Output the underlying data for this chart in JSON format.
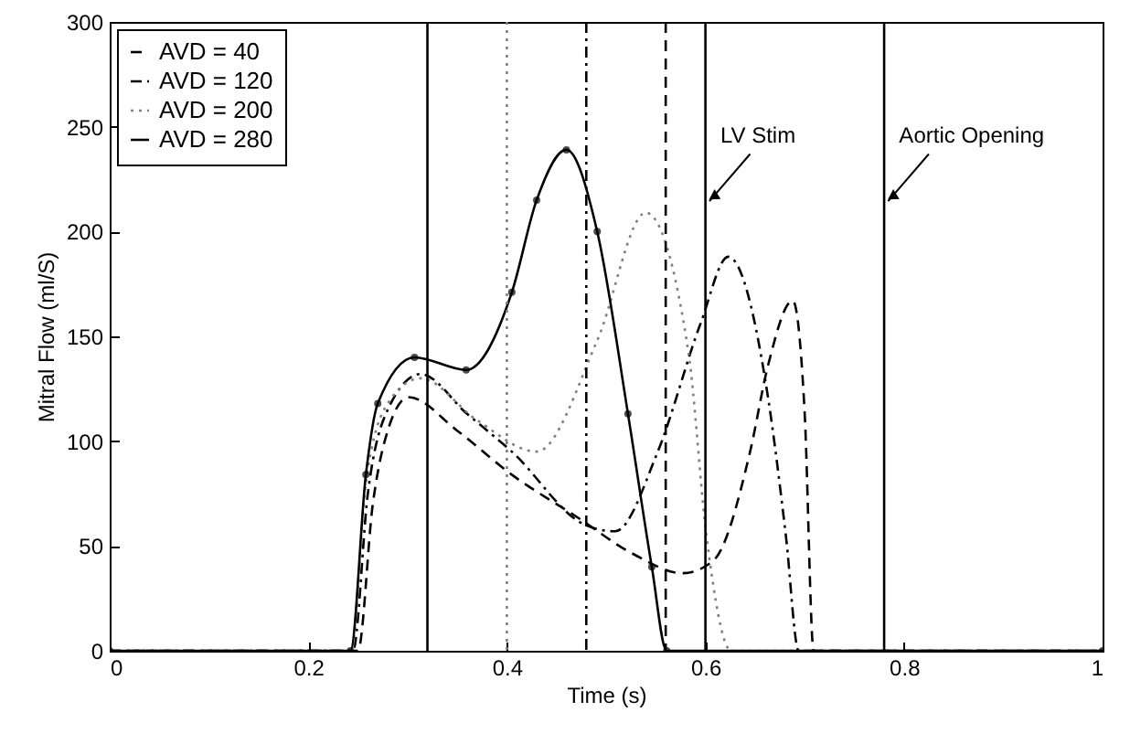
{
  "chart_data": {
    "type": "line",
    "xlabel": "Time (s)",
    "ylabel": "Mitral Flow (ml/S)",
    "xlim": [
      0,
      1
    ],
    "xticks": [
      0,
      0.2,
      0.4,
      0.6,
      0.8,
      1
    ],
    "ylim": [
      0,
      300
    ],
    "yticks": [
      0,
      50,
      100,
      150,
      200,
      250,
      300
    ],
    "legend": "top left",
    "series": [
      {
        "name": "AVD = 40",
        "color": "#000000",
        "line_style": "dashed",
        "x": [
          0,
          0.25,
          0.265,
          0.28,
          0.301,
          0.35,
          0.405,
          0.47,
          0.528,
          0.577,
          0.608,
          0.645,
          0.663,
          0.688,
          0.7,
          0.709,
          1
        ],
        "values": [
          0,
          0,
          70,
          105,
          121,
          105,
          84,
          64,
          46,
          37,
          43,
          95,
          136,
          167,
          113,
          0,
          0
        ]
      },
      {
        "name": "AVD = 120",
        "color": "#000000",
        "line_style": "dashdot",
        "x": [
          0,
          0.245,
          0.26,
          0.28,
          0.313,
          0.36,
          0.405,
          0.479,
          0.509,
          0.552,
          0.595,
          0.623,
          0.663,
          0.681,
          0.694,
          1
        ],
        "values": [
          0,
          0,
          75,
          115,
          132,
          113,
          95,
          60,
          57,
          95,
          156,
          188,
          121,
          55,
          0,
          0
        ]
      },
      {
        "name": "AVD = 200",
        "color": "#808080",
        "line_style": "dotted",
        "x": [
          0,
          0.243,
          0.258,
          0.28,
          0.313,
          0.37,
          0.43,
          0.491,
          0.54,
          0.583,
          0.601,
          0.626,
          1
        ],
        "values": [
          0,
          0,
          80,
          118,
          130,
          110,
          95,
          148,
          209,
          142,
          55,
          0,
          0
        ]
      },
      {
        "name": "AVD = 280",
        "color": "#000000",
        "line_style": "solid",
        "marker": "circle",
        "x": [
          0,
          0.2425,
          0.258,
          0.27,
          0.307,
          0.359,
          0.405,
          0.43,
          0.46,
          0.491,
          0.522,
          0.546,
          0.561,
          1
        ],
        "values": [
          0,
          0,
          84,
          118,
          140,
          134,
          171,
          215,
          239,
          200,
          113,
          40,
          0,
          0
        ]
      }
    ],
    "ref_lines": [
      {
        "axis": "x",
        "value": 0.32,
        "label": null,
        "line_style": "solid",
        "color": "#000000"
      },
      {
        "axis": "x",
        "value": 0.4,
        "label": null,
        "line_style": "dotted",
        "color": "#808080"
      },
      {
        "axis": "x",
        "value": 0.48,
        "label": null,
        "line_style": "dashdot",
        "color": "#000000"
      },
      {
        "axis": "x",
        "value": 0.56,
        "label": null,
        "line_style": "dashed",
        "color": "#000000"
      },
      {
        "axis": "x",
        "value": 0.6,
        "label": "LV Stim",
        "line_style": "solid",
        "color": "#000000"
      },
      {
        "axis": "x",
        "value": 0.78,
        "label": "Aortic Opening",
        "line_style": "solid",
        "color": "#000000"
      }
    ]
  }
}
